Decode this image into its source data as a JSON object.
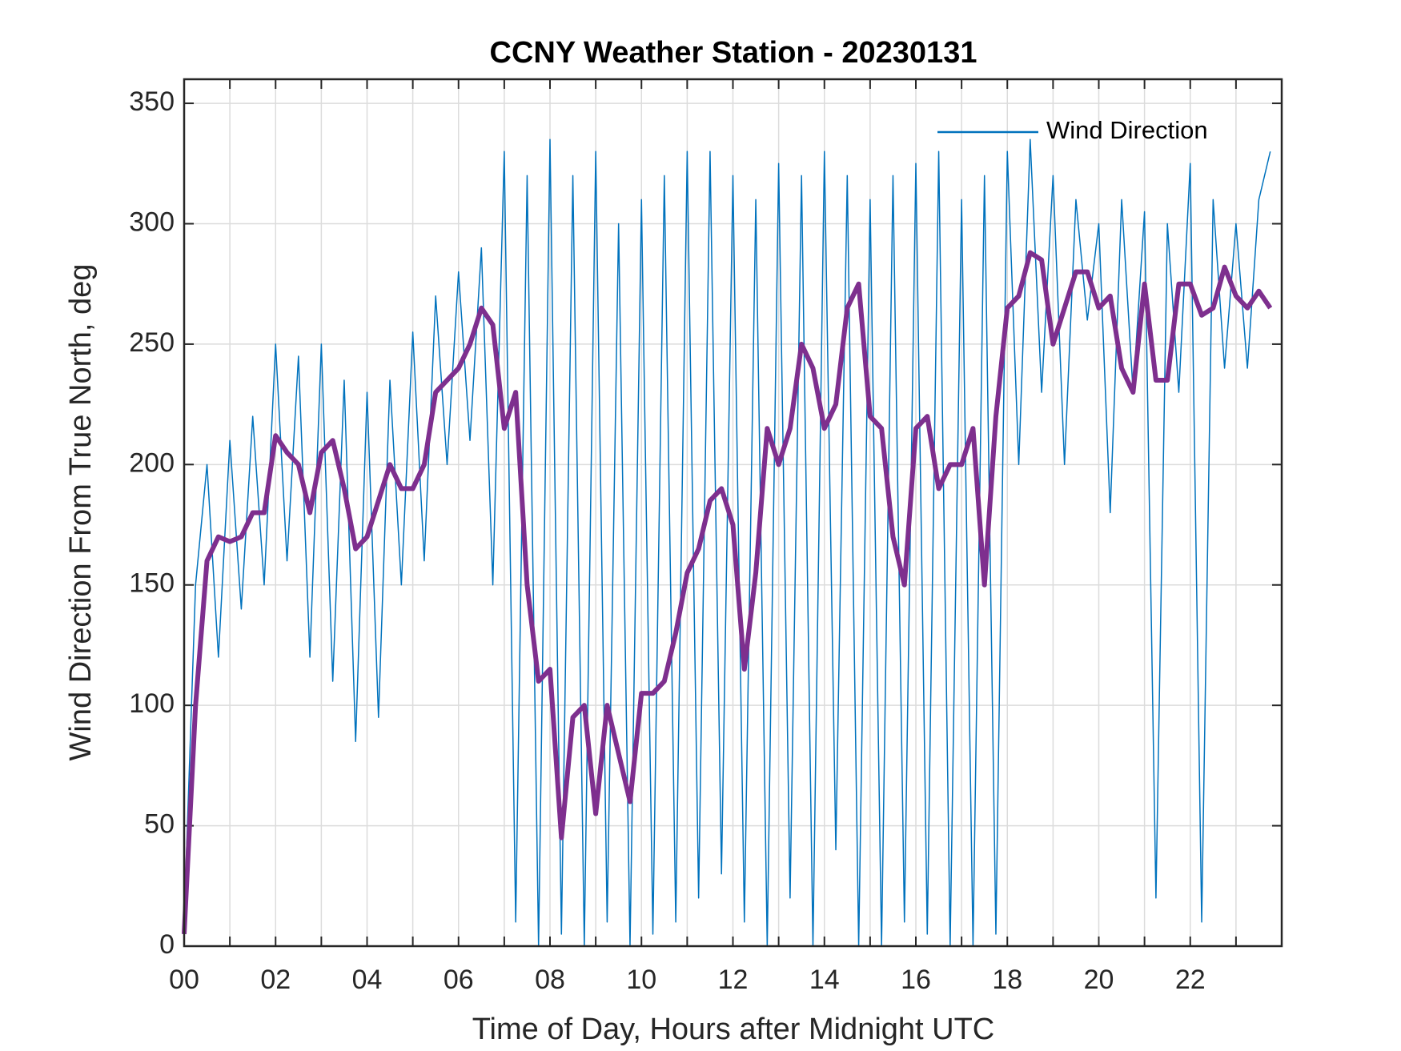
{
  "chart_data": {
    "type": "line",
    "title": "CCNY Weather Station - 20230131",
    "xlabel": "Time of Day, Hours after Midnight UTC",
    "ylabel": "Wind Direction From True North, deg",
    "x": [
      0,
      0.25,
      0.5,
      0.75,
      1,
      1.25,
      1.5,
      1.75,
      2,
      2.25,
      2.5,
      2.75,
      3,
      3.25,
      3.5,
      3.75,
      4,
      4.25,
      4.5,
      4.75,
      5,
      5.25,
      5.5,
      5.75,
      6,
      6.25,
      6.5,
      6.75,
      7,
      7.25,
      7.5,
      7.75,
      8,
      8.25,
      8.5,
      8.75,
      9,
      9.25,
      9.5,
      9.75,
      10,
      10.25,
      10.5,
      10.75,
      11,
      11.25,
      11.5,
      11.75,
      12,
      12.25,
      12.5,
      12.75,
      13,
      13.25,
      13.5,
      13.75,
      14,
      14.25,
      14.5,
      14.75,
      15,
      15.25,
      15.5,
      15.75,
      16,
      16.25,
      16.5,
      16.75,
      17,
      17.25,
      17.5,
      17.75,
      18,
      18.25,
      18.5,
      18.75,
      19,
      19.25,
      19.5,
      19.75,
      20,
      20.25,
      20.5,
      20.75,
      21,
      21.25,
      21.5,
      21.75,
      22,
      22.25,
      22.5,
      22.75,
      23,
      23.25,
      23.5,
      23.75
    ],
    "series": [
      {
        "name": "Wind Direction",
        "color": "#0072bd",
        "width": 1.5,
        "values": [
          10,
          150,
          200,
          120,
          210,
          140,
          220,
          150,
          250,
          160,
          245,
          120,
          250,
          110,
          235,
          85,
          230,
          95,
          235,
          150,
          255,
          160,
          270,
          200,
          280,
          210,
          290,
          150,
          330,
          10,
          320,
          0,
          335,
          5,
          320,
          0,
          330,
          10,
          300,
          0,
          310,
          5,
          320,
          10,
          330,
          20,
          330,
          30,
          320,
          10,
          310,
          0,
          325,
          20,
          320,
          0,
          330,
          40,
          320,
          0,
          310,
          0,
          320,
          10,
          325,
          5,
          330,
          0,
          310,
          0,
          320,
          5,
          330,
          200,
          335,
          230,
          320,
          200,
          310,
          260,
          300,
          180,
          310,
          230,
          305,
          20,
          300,
          230,
          325,
          10,
          310,
          240,
          300,
          240,
          310,
          330
        ]
      },
      {
        "color": "#7e2f8e",
        "width": 6,
        "values": [
          5,
          100,
          160,
          170,
          168,
          170,
          180,
          180,
          212,
          205,
          200,
          180,
          205,
          210,
          190,
          165,
          170,
          185,
          200,
          190,
          190,
          200,
          230,
          235,
          240,
          250,
          265,
          258,
          215,
          230,
          150,
          110,
          115,
          45,
          95,
          100,
          55,
          100,
          80,
          60,
          105,
          105,
          110,
          130,
          155,
          165,
          185,
          190,
          175,
          115,
          155,
          215,
          200,
          215,
          250,
          240,
          215,
          225,
          265,
          275,
          220,
          215,
          170,
          150,
          215,
          220,
          190,
          200,
          200,
          215,
          150,
          220,
          265,
          270,
          288,
          285,
          250,
          265,
          280,
          280,
          265,
          270,
          240,
          230,
          275,
          235,
          235,
          275,
          275,
          262,
          265,
          282,
          270,
          265,
          272,
          265
        ]
      }
    ],
    "xlim": [
      0,
      24
    ],
    "xticks": [
      {
        "value": 0,
        "label": "00"
      },
      {
        "value": 2,
        "label": "02"
      },
      {
        "value": 4,
        "label": "04"
      },
      {
        "value": 6,
        "label": "06"
      },
      {
        "value": 8,
        "label": "08"
      },
      {
        "value": 10,
        "label": "10"
      },
      {
        "value": 12,
        "label": "12"
      },
      {
        "value": 14,
        "label": "14"
      },
      {
        "value": 16,
        "label": "16"
      },
      {
        "value": 18,
        "label": "18"
      },
      {
        "value": 20,
        "label": "20"
      },
      {
        "value": 22,
        "label": "22"
      }
    ],
    "xminorticks": [
      1,
      3,
      5,
      7,
      9,
      11,
      13,
      15,
      17,
      19,
      21,
      23
    ],
    "ylim": [
      0,
      360
    ],
    "yticks": [
      0,
      50,
      100,
      150,
      200,
      250,
      300,
      350
    ],
    "grid": true,
    "legend": "upper-right"
  }
}
